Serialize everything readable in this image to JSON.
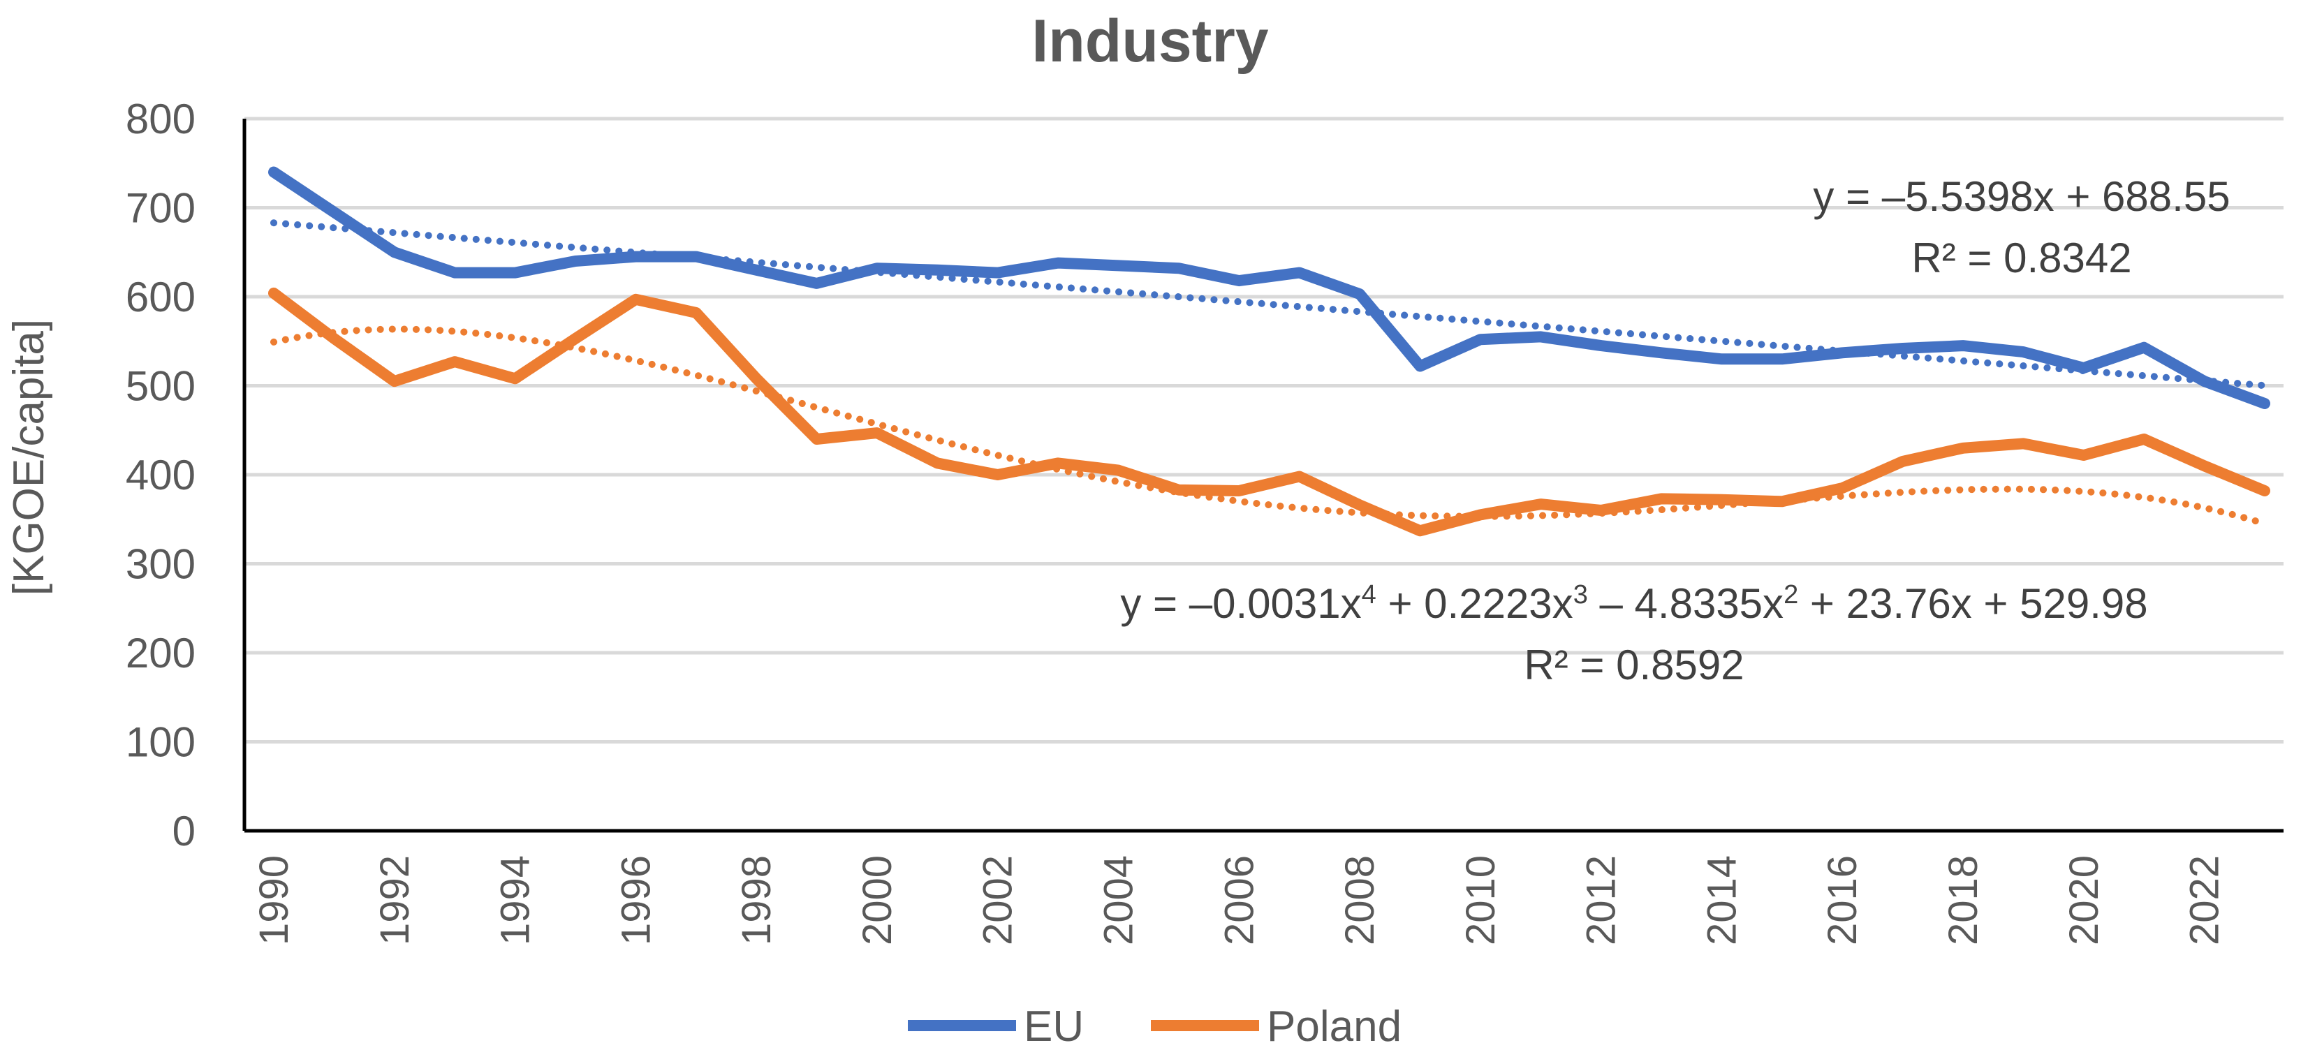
{
  "chart_data": {
    "type": "line",
    "title": "Industry",
    "xlabel": "",
    "ylabel": "[KGOE/capita]",
    "ylim": [
      0,
      800
    ],
    "yticks": [
      "0",
      "100",
      "200",
      "300",
      "400",
      "500",
      "600",
      "700",
      "800"
    ],
    "x": [
      1990,
      1991,
      1992,
      1993,
      1994,
      1995,
      1996,
      1997,
      1998,
      1999,
      2000,
      2001,
      2002,
      2003,
      2004,
      2005,
      2006,
      2007,
      2008,
      2009,
      2010,
      2011,
      2012,
      2013,
      2014,
      2015,
      2016,
      2017,
      2018,
      2019,
      2020,
      2021,
      2022,
      2023
    ],
    "xtick_labels": [
      "1990",
      "1992",
      "1994",
      "1996",
      "1998",
      "2000",
      "2002",
      "2004",
      "2006",
      "2008",
      "2010",
      "2012",
      "2014",
      "2016",
      "2018",
      "2020",
      "2022"
    ],
    "grid": true,
    "legend_position": "bottom",
    "series": [
      {
        "name": "EU",
        "color": "#4472C4",
        "values": [
          740,
          695,
          650,
          627,
          627,
          640,
          645,
          645,
          630,
          615,
          632,
          630,
          627,
          638,
          635,
          632,
          618,
          627,
          603,
          522,
          552,
          555,
          545,
          537,
          530,
          530,
          537,
          542,
          545,
          538,
          520,
          543,
          505,
          480
        ]
      },
      {
        "name": "Poland",
        "color": "#ED7D31",
        "values": [
          604,
          553,
          505,
          527,
          508,
          553,
          597,
          582,
          508,
          440,
          447,
          413,
          400,
          413,
          405,
          383,
          382,
          398,
          366,
          337,
          355,
          367,
          360,
          373,
          372,
          370,
          385,
          415,
          430,
          435,
          422,
          440,
          410,
          382
        ]
      }
    ],
    "trendlines": [
      {
        "series": "EU",
        "kind": "linear",
        "equation": "y = –5.5398x + 688.55",
        "r2_label": "R² = 0.8342",
        "coefficients": [
          688.55,
          -5.5398
        ]
      },
      {
        "series": "Poland",
        "kind": "polynomial",
        "equation_prefix": "y = –0.0031x",
        "eq_exp4": "4",
        "eq_mid1": " + 0.2223x",
        "eq_exp3": "3",
        "eq_mid2": " – 4.8335x",
        "eq_exp2": "2",
        "eq_suffix": " + 23.76x + 529.98",
        "r2_label": "R² = 0.8592",
        "coefficients": [
          529.98,
          23.76,
          -4.8335,
          0.2223,
          -0.0031
        ]
      }
    ]
  }
}
